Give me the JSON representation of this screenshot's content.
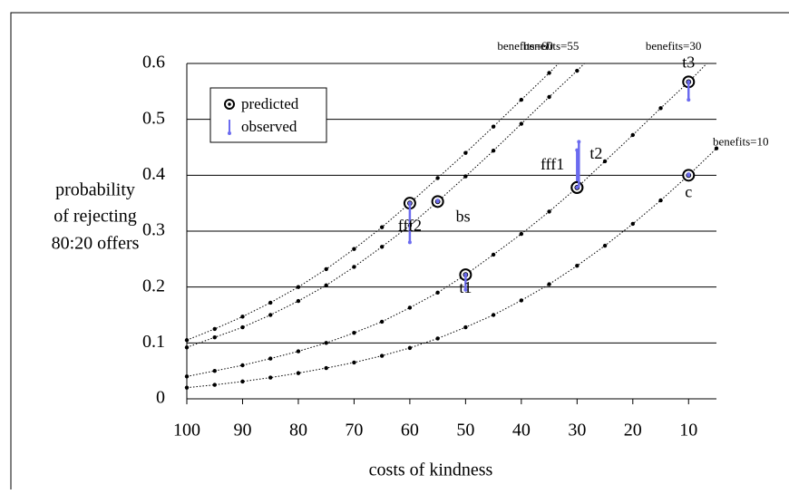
{
  "chart_data": {
    "type": "line",
    "xlabel": "costs of kindness",
    "ylabel": [
      "probability",
      "of rejecting",
      "80:20 offers"
    ],
    "xlim": [
      100,
      5
    ],
    "xticks": [
      100,
      90,
      80,
      70,
      60,
      50,
      40,
      30,
      20,
      10
    ],
    "ylim": [
      0,
      0.6
    ],
    "yticks": [
      0,
      0.1,
      0.2,
      0.3,
      0.4,
      0.5,
      0.6
    ],
    "grid": true,
    "x": [
      100,
      95,
      90,
      85,
      80,
      75,
      70,
      65,
      60,
      55,
      50,
      45,
      40,
      35,
      30,
      25,
      20,
      15,
      10,
      5
    ],
    "series": [
      {
        "name": "benefits=60",
        "color": "#000000",
        "values": [
          0.105,
          0.125,
          0.147,
          0.172,
          0.2,
          0.232,
          0.268,
          0.307,
          0.35,
          0.395,
          0.44,
          0.487,
          0.535,
          0.583,
          null,
          null,
          null,
          null,
          null,
          null
        ]
      },
      {
        "name": "benefits=55",
        "color": "#000000",
        "values": [
          0.092,
          0.11,
          0.128,
          0.15,
          0.175,
          0.203,
          0.236,
          0.272,
          0.31,
          0.353,
          0.398,
          0.444,
          0.492,
          0.54,
          0.587,
          null,
          null,
          null,
          null,
          null
        ]
      },
      {
        "name": "benefits=30",
        "color": "#000000",
        "values": [
          0.04,
          0.05,
          0.06,
          0.072,
          0.085,
          0.1,
          0.118,
          0.138,
          0.163,
          0.19,
          0.222,
          0.258,
          0.295,
          0.335,
          0.378,
          0.425,
          0.472,
          0.52,
          0.567,
          null
        ]
      },
      {
        "name": "benefits=10",
        "color": "#000000",
        "values": [
          0.02,
          0.025,
          0.031,
          0.038,
          0.046,
          0.055,
          0.065,
          0.077,
          0.091,
          0.108,
          0.128,
          0.15,
          0.176,
          0.205,
          0.238,
          0.274,
          0.313,
          0.355,
          0.4,
          0.448
        ]
      }
    ],
    "legend": {
      "predicted": "predicted",
      "observed": "observed"
    },
    "observed_color": "#6b6bef",
    "points": [
      {
        "label": "fff2",
        "x": 60,
        "predicted": 0.35,
        "observed": 0.28
      },
      {
        "label": "bs",
        "x": 55,
        "predicted": 0.353,
        "observed": 0.355
      },
      {
        "label": "t1",
        "x": 50,
        "predicted": 0.222,
        "observed": 0.195
      },
      {
        "label": "fff1",
        "x": 30,
        "predicted": 0.378,
        "observed": 0.445
      },
      {
        "label": "t2",
        "x": 30,
        "predicted": 0.378,
        "observed": 0.46
      },
      {
        "label": "t3",
        "x": 10,
        "predicted": 0.567,
        "observed": 0.535
      },
      {
        "label": "c",
        "x": 10,
        "predicted": 0.4,
        "observed": 0.402
      }
    ]
  }
}
